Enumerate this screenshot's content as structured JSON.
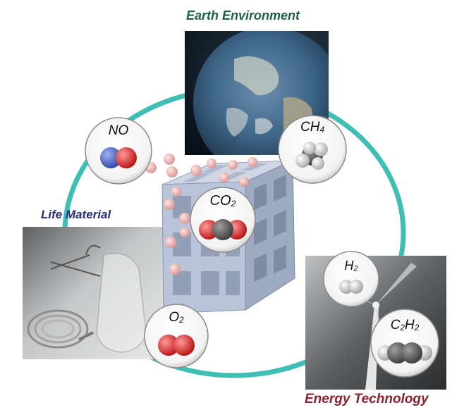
{
  "labels": {
    "earth": "Earth Environment",
    "life": "Life Material",
    "energy": "Energy Technology"
  },
  "colors": {
    "earth_label": "#1f5f48",
    "life_label": "#2b2d78",
    "energy_label": "#8a2230",
    "ring": "#3fbfb3",
    "cube": "#b9c3d9",
    "guest_sphere": "#e8aaa6",
    "oxygen": "#d42020",
    "nitrogen": "#3a55c0",
    "carbon": "#555555",
    "hydrogen": "#e6e6e6"
  },
  "molecules": {
    "no": {
      "base": "NO",
      "sub": ""
    },
    "ch4": {
      "base": "CH",
      "sub": "4"
    },
    "co2": {
      "base": "CO",
      "sub": "2"
    },
    "h2": {
      "base": "H",
      "sub": "2"
    },
    "o2": {
      "base": "O",
      "sub": "2"
    },
    "c2h2": {
      "base": "C",
      "sub": "2",
      "base2": "H",
      "sub2": "2"
    }
  }
}
